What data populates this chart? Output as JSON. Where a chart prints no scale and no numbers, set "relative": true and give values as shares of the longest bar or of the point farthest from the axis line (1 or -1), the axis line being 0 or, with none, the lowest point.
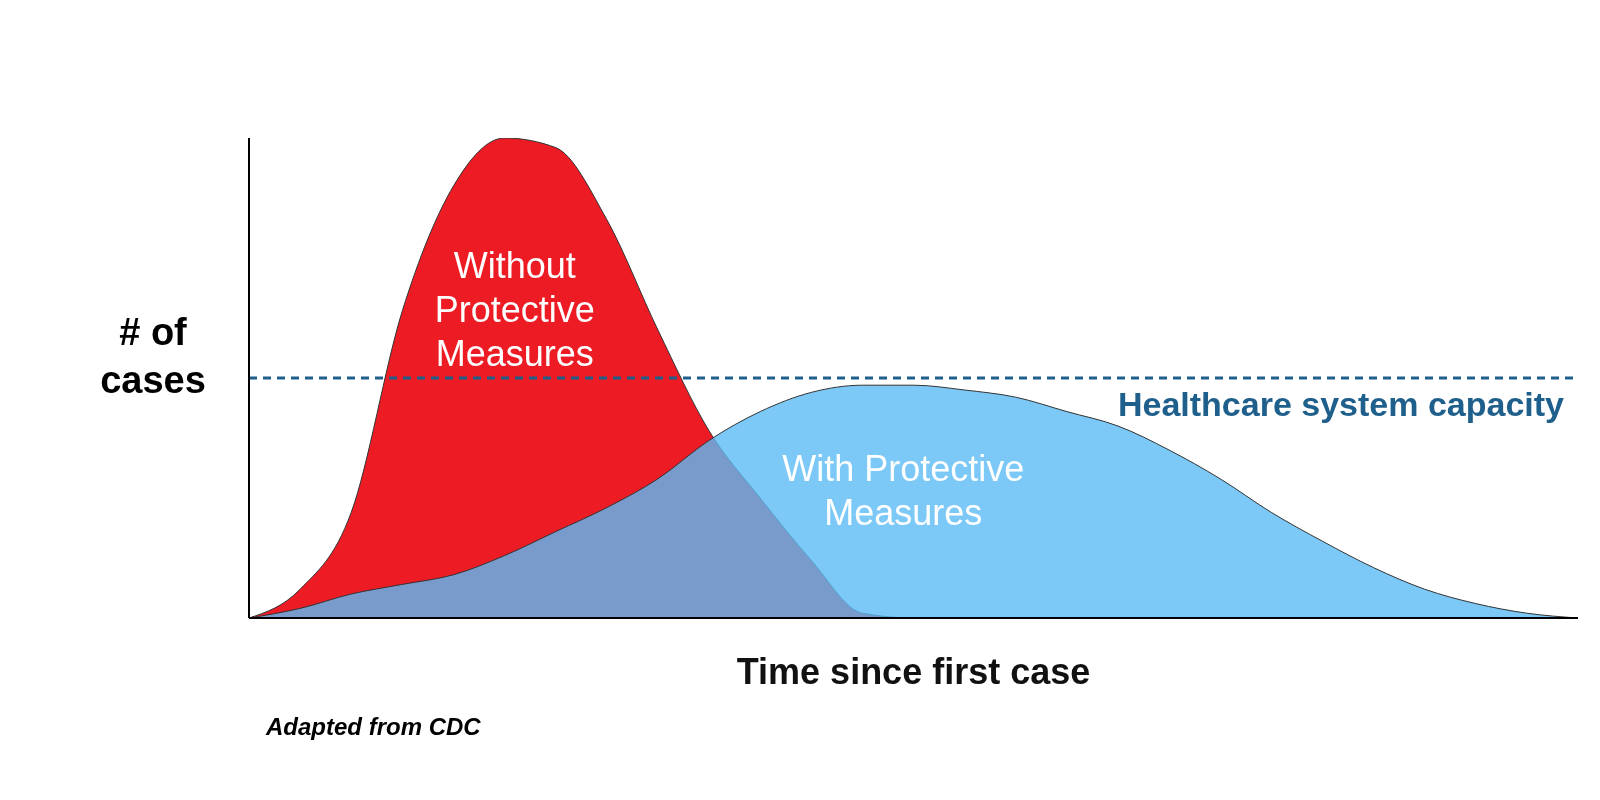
{
  "chart_data": {
    "type": "area",
    "relative": true,
    "xlabel": "Time since first case",
    "ylabel": "# of cases",
    "categories": [
      null,
      null,
      null,
      null,
      null,
      null,
      null,
      null,
      null,
      null,
      null,
      null,
      null,
      null,
      null,
      null,
      null,
      null,
      null,
      null,
      null,
      null,
      null,
      null,
      null,
      null,
      null
    ],
    "series": [
      {
        "name": "Without Protective Measures",
        "color": "#ed1c24",
        "values": [
          0,
          0.06,
          0.22,
          0.64,
          0.9,
          1,
          0.98,
          0.83,
          0.6,
          0.39,
          0.25,
          0.12,
          0.01,
          0,
          0,
          0,
          0,
          0,
          0,
          0,
          0,
          0,
          0,
          0,
          0,
          0,
          0
        ]
      },
      {
        "name": "With Protective Measures",
        "color": "#5bbcf5",
        "values": [
          0,
          0.02,
          0.05,
          0.07,
          0.09,
          0.13,
          0.18,
          0.23,
          0.29,
          0.37,
          0.43,
          0.47,
          0.485,
          0.485,
          0.475,
          0.46,
          0.43,
          0.4,
          0.35,
          0.29,
          0.22,
          0.16,
          0.105,
          0.06,
          0.03,
          0.01,
          0
        ]
      }
    ],
    "ref_lines": [
      {
        "axis": "y",
        "value": 0.5,
        "label": "Healthcare system capacity",
        "color": "#1f5f8b",
        "line_style": "dashed"
      }
    ],
    "annotations": [
      "Adapted from CDC"
    ],
    "legend": false,
    "grid": false
  }
}
